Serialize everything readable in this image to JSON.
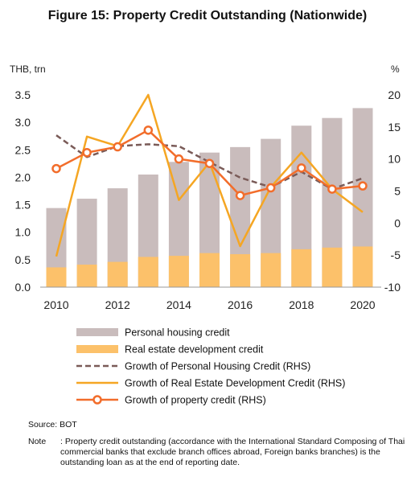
{
  "chart_data": {
    "type": "bar+line",
    "title": "Figure 15: Property Credit Outstanding (Nationwide)",
    "y_left_label": "THB, trn",
    "y_right_label": "%",
    "x": [
      2010,
      2011,
      2012,
      2013,
      2014,
      2015,
      2016,
      2017,
      2018,
      2019,
      2020
    ],
    "x_ticks": [
      "2010",
      "2012",
      "2014",
      "2016",
      "2018",
      "2020"
    ],
    "y_left_lim": [
      0,
      3.5
    ],
    "y_left_ticks": [
      "0.0",
      "0.5",
      "1.0",
      "1.5",
      "2.0",
      "2.5",
      "3.0",
      "3.5"
    ],
    "y_right_lim": [
      -10,
      20
    ],
    "y_right_ticks": [
      "-10",
      "-5",
      "0",
      "5",
      "10",
      "15",
      "20"
    ],
    "legend_position": "bottom",
    "series": [
      {
        "name": "Personal housing credit",
        "type": "bar",
        "axis": "left",
        "color": "#c9bcbc",
        "values": [
          1.44,
          1.61,
          1.8,
          2.05,
          2.28,
          2.45,
          2.55,
          2.7,
          2.94,
          3.08,
          3.26
        ]
      },
      {
        "name": "Real estate development credit",
        "type": "bar",
        "axis": "left",
        "color": "#fcc16a",
        "values": [
          0.36,
          0.41,
          0.46,
          0.55,
          0.57,
          0.62,
          0.6,
          0.62,
          0.69,
          0.72,
          0.74
        ]
      },
      {
        "name": "Growth of Personal Housing Credit (RHS)",
        "type": "line",
        "style": "dashed",
        "axis": "right",
        "color": "#7a5b58",
        "values": [
          13.7,
          10.3,
          12.0,
          12.3,
          12.0,
          9.5,
          7.1,
          5.6,
          8.0,
          5.3,
          7.0
        ]
      },
      {
        "name": "Growth of Real Estate Development Credit (RHS)",
        "type": "line",
        "axis": "right",
        "color": "#f5a623",
        "values": [
          -5.2,
          13.5,
          12.0,
          20.0,
          3.6,
          9.5,
          -3.6,
          5.6,
          11.0,
          5.3,
          1.7
        ]
      },
      {
        "name": "Growth of property credit (RHS)",
        "type": "line",
        "marker": "circle",
        "axis": "right",
        "color": "#f26d2b",
        "values": [
          8.5,
          11.0,
          11.9,
          14.5,
          10.0,
          9.3,
          4.3,
          5.5,
          8.6,
          5.3,
          5.8
        ]
      }
    ]
  },
  "footer": {
    "source": "Source: BOT",
    "note_label": "Note",
    "note_text": ": Property credit outstanding (accordance with the International Standard Composing of Thai commercial banks that exclude branch offices abroad, Foreign banks branches) is the outstanding loan as at the end of reporting date."
  }
}
